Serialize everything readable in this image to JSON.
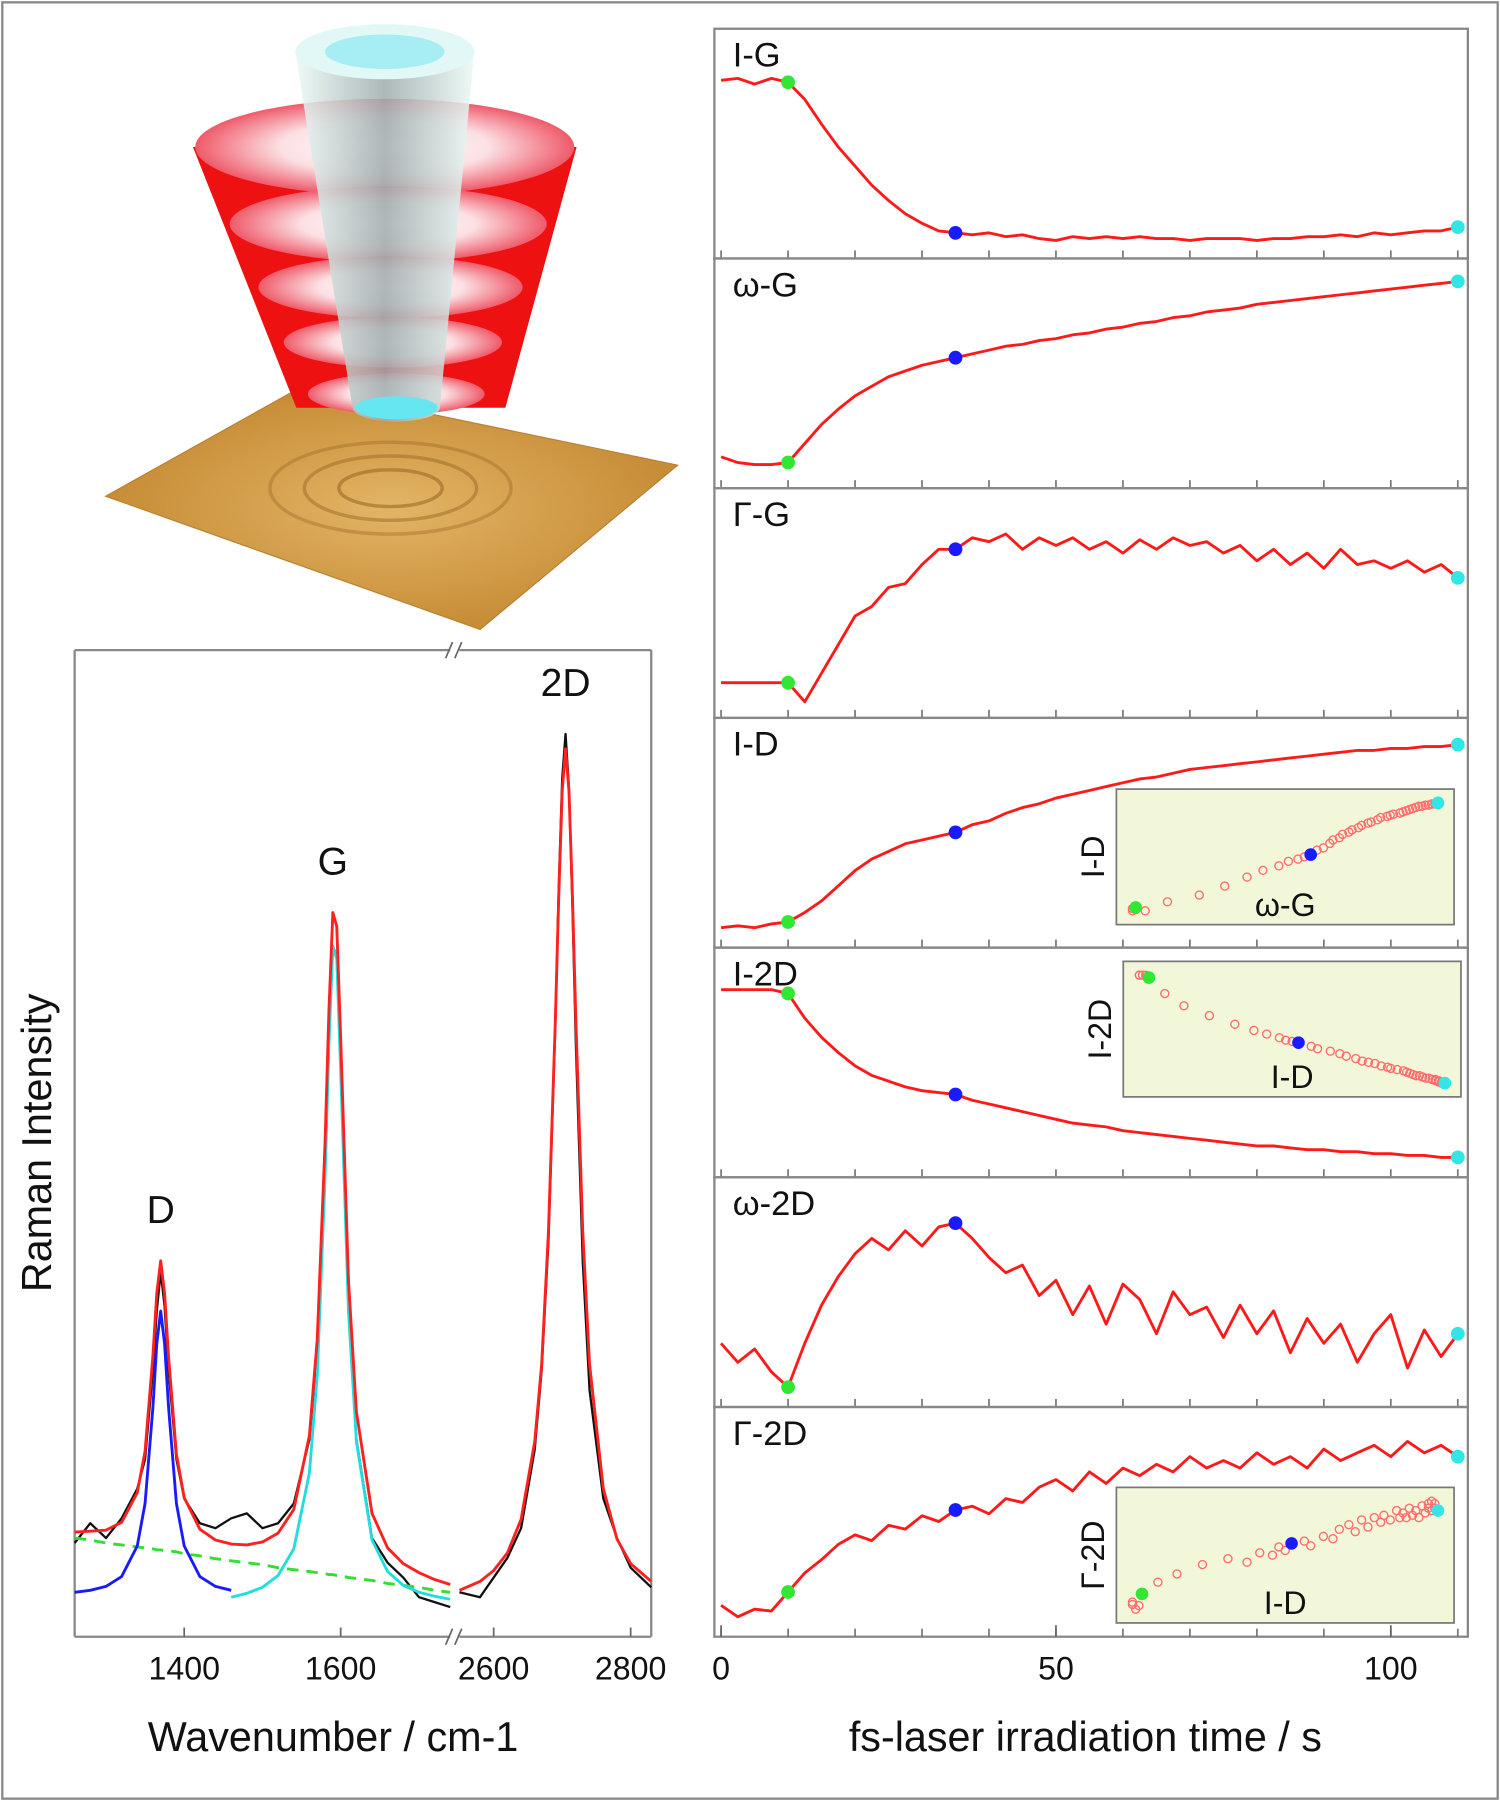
{
  "chart_data": [
    {
      "type": "line",
      "y_label": "Raman Intensity",
      "x_label": "Wavenumber / cm-1",
      "ylim": [
        0,
        1
      ],
      "segments": [
        {
          "xlim": [
            1260,
            1740
          ],
          "xticks": [
            1400,
            1600
          ],
          "x": [
            1260,
            1280,
            1300,
            1320,
            1340,
            1350,
            1360,
            1365,
            1370,
            1375,
            1380,
            1390,
            1400,
            1420,
            1440,
            1460,
            1480,
            1500,
            1520,
            1540,
            1560,
            1570,
            1580,
            1585,
            1590,
            1595,
            1600,
            1610,
            1620,
            1640,
            1660,
            1680,
            1700,
            1720,
            1740
          ],
          "series": [
            {
              "color": "#111111",
              "values": [
                0.095,
                0.115,
                0.1,
                0.12,
                0.15,
                0.18,
                0.27,
                0.33,
                0.37,
                0.335,
                0.27,
                0.18,
                0.14,
                0.115,
                0.11,
                0.12,
                0.125,
                0.11,
                0.115,
                0.135,
                0.2,
                0.29,
                0.48,
                0.61,
                0.7,
                0.69,
                0.58,
                0.33,
                0.2,
                0.1,
                0.075,
                0.06,
                0.04,
                0.035,
                0.03
              ]
            },
            {
              "color": "#33dd33",
              "style": "dashed",
              "values": [
                0.1,
                0.098,
                0.095,
                0.093,
                0.091,
                0.09,
                0.089,
                0.088,
                0.088,
                0.087,
                0.087,
                0.086,
                0.084,
                0.082,
                0.079,
                0.077,
                0.075,
                0.073,
                0.07,
                0.068,
                0.066,
                0.065,
                0.064,
                0.063,
                0.063,
                0.062,
                0.062,
                0.06,
                0.059,
                0.057,
                0.054,
                0.052,
                0.05,
                0.047,
                0.045
              ]
            },
            {
              "color": "#1a1aff",
              "values": [
                0.045,
                0.047,
                0.051,
                0.061,
                0.092,
                0.135,
                0.232,
                0.297,
                0.33,
                0.297,
                0.232,
                0.135,
                0.092,
                0.061,
                0.051,
                0.047,
                null,
                null,
                null,
                null,
                null,
                null,
                null,
                null,
                null,
                null,
                null,
                null,
                null,
                null,
                null,
                null,
                null,
                null,
                null
              ]
            },
            {
              "color": "#22dddd",
              "values": [
                null,
                null,
                null,
                null,
                null,
                null,
                null,
                null,
                null,
                null,
                null,
                null,
                null,
                null,
                null,
                0.04,
                0.044,
                0.05,
                0.062,
                0.089,
                0.166,
                0.265,
                0.465,
                0.601,
                0.7,
                0.687,
                0.574,
                0.33,
                0.198,
                0.098,
                0.066,
                0.052,
                0.045,
                0.041,
                0.038
              ]
            },
            {
              "color": "#ff2020",
              "values": [
                0.106,
                0.107,
                0.108,
                0.116,
                0.146,
                0.188,
                0.284,
                0.348,
                0.381,
                0.348,
                0.283,
                0.185,
                0.141,
                0.109,
                0.098,
                0.094,
                0.093,
                0.096,
                0.105,
                0.129,
                0.204,
                0.301,
                0.5,
                0.635,
                0.734,
                0.72,
                0.607,
                0.361,
                0.228,
                0.125,
                0.09,
                0.074,
                0.065,
                0.058,
                0.053
              ]
            }
          ]
        },
        {
          "xlim": [
            2550,
            2830
          ],
          "xticks": [
            2600,
            2800
          ],
          "x": [
            2550,
            2580,
            2600,
            2620,
            2640,
            2660,
            2670,
            2680,
            2690,
            2695,
            2700,
            2705,
            2710,
            2715,
            2720,
            2730,
            2740,
            2760,
            2780,
            2800,
            2830
          ],
          "series": [
            {
              "color": "#111111",
              "values": [
                0.045,
                0.04,
                0.06,
                0.08,
                0.11,
                0.19,
                0.27,
                0.4,
                0.62,
                0.76,
                0.87,
                0.915,
                0.86,
                0.74,
                0.6,
                0.38,
                0.25,
                0.14,
                0.1,
                0.07,
                0.05
              ]
            },
            {
              "color": "#ff2020",
              "values": [
                0.047,
                0.056,
                0.067,
                0.085,
                0.119,
                0.198,
                0.276,
                0.41,
                0.624,
                0.751,
                0.857,
                0.9,
                0.857,
                0.751,
                0.624,
                0.41,
                0.276,
                0.15,
                0.099,
                0.074,
                0.056
              ]
            }
          ]
        }
      ],
      "annotations": [
        {
          "text": "D",
          "x": 1370
        },
        {
          "text": "G",
          "x": 1590
        },
        {
          "text": "2D",
          "x": 2705
        }
      ]
    },
    {
      "type": "line",
      "x_label": "fs-laser irradiation time / s",
      "xlim": [
        -1,
        111.5
      ],
      "xticks": [
        0,
        50,
        100
      ],
      "xminorticks": [
        0,
        10,
        20,
        30,
        40,
        50,
        60,
        70,
        80,
        90,
        100,
        110
      ],
      "color": "#ff1a1a",
      "x": [
        0,
        2.5,
        5,
        7.5,
        10,
        12.5,
        15,
        17.5,
        20,
        22.5,
        25,
        27.5,
        30,
        32.5,
        35,
        37.5,
        40,
        42.5,
        45,
        47.5,
        50,
        52.5,
        55,
        57.5,
        60,
        62.5,
        65,
        67.5,
        70,
        72.5,
        75,
        77.5,
        80,
        82.5,
        85,
        87.5,
        90,
        92.5,
        95,
        97.5,
        100,
        102.5,
        105,
        107.5,
        110
      ],
      "markers": [
        {
          "x": 10,
          "color": "#33e633"
        },
        {
          "x": 35,
          "color": "#1a1aff"
        },
        {
          "x": 110,
          "color": "#33e6e6"
        }
      ],
      "panels": [
        {
          "label": "I-G",
          "ylim": [
            0,
            1
          ],
          "values": [
            0.85,
            0.86,
            0.83,
            0.86,
            0.84,
            0.75,
            0.62,
            0.5,
            0.4,
            0.3,
            0.22,
            0.15,
            0.1,
            0.06,
            0.05,
            0.04,
            0.05,
            0.03,
            0.04,
            0.02,
            0.01,
            0.03,
            0.02,
            0.03,
            0.02,
            0.03,
            0.02,
            0.02,
            0.01,
            0.02,
            0.02,
            0.02,
            0.01,
            0.02,
            0.02,
            0.03,
            0.03,
            0.04,
            0.03,
            0.05,
            0.04,
            0.05,
            0.06,
            0.06,
            0.08
          ]
        },
        {
          "label": "ω-G",
          "ylim": [
            0,
            1
          ],
          "values": [
            0.08,
            0.05,
            0.04,
            0.04,
            0.05,
            0.15,
            0.25,
            0.33,
            0.4,
            0.45,
            0.5,
            0.53,
            0.56,
            0.58,
            0.6,
            0.62,
            0.64,
            0.66,
            0.67,
            0.69,
            0.7,
            0.72,
            0.73,
            0.75,
            0.76,
            0.78,
            0.79,
            0.81,
            0.82,
            0.84,
            0.85,
            0.86,
            0.88,
            0.89,
            0.9,
            0.91,
            0.92,
            0.93,
            0.94,
            0.95,
            0.96,
            0.97,
            0.98,
            0.99,
            1.0
          ]
        },
        {
          "label": "Γ-G",
          "ylim": [
            0,
            1
          ],
          "values": [
            0.1,
            0.1,
            0.1,
            0.1,
            0.1,
            0.0,
            0.15,
            0.3,
            0.45,
            0.5,
            0.6,
            0.62,
            0.72,
            0.8,
            0.8,
            0.86,
            0.84,
            0.88,
            0.8,
            0.86,
            0.82,
            0.86,
            0.8,
            0.84,
            0.78,
            0.85,
            0.8,
            0.86,
            0.82,
            0.84,
            0.78,
            0.82,
            0.74,
            0.8,
            0.72,
            0.78,
            0.7,
            0.8,
            0.72,
            0.74,
            0.7,
            0.74,
            0.68,
            0.72,
            0.65
          ]
        },
        {
          "label": "I-D",
          "ylim": [
            0,
            1
          ],
          "values": [
            0.02,
            0.03,
            0.02,
            0.04,
            0.05,
            0.1,
            0.16,
            0.24,
            0.32,
            0.38,
            0.42,
            0.46,
            0.48,
            0.5,
            0.52,
            0.56,
            0.58,
            0.62,
            0.65,
            0.67,
            0.7,
            0.72,
            0.74,
            0.76,
            0.78,
            0.8,
            0.81,
            0.83,
            0.85,
            0.86,
            0.87,
            0.88,
            0.89,
            0.9,
            0.91,
            0.92,
            0.93,
            0.94,
            0.95,
            0.95,
            0.96,
            0.96,
            0.97,
            0.97,
            0.98
          ],
          "inset": {
            "x_label": "ω-G",
            "y_label": "I-D",
            "color": "#ff6e6e",
            "background": "#f3f7da"
          }
        },
        {
          "label": "I-2D",
          "ylim": [
            0,
            1
          ],
          "values": [
            0.9,
            0.9,
            0.9,
            0.9,
            0.88,
            0.75,
            0.65,
            0.57,
            0.5,
            0.45,
            0.42,
            0.39,
            0.37,
            0.36,
            0.35,
            0.32,
            0.3,
            0.28,
            0.26,
            0.24,
            0.22,
            0.2,
            0.19,
            0.18,
            0.16,
            0.15,
            0.14,
            0.13,
            0.12,
            0.11,
            0.1,
            0.09,
            0.08,
            0.08,
            0.07,
            0.06,
            0.06,
            0.05,
            0.05,
            0.04,
            0.04,
            0.03,
            0.03,
            0.02,
            0.02
          ],
          "inset": {
            "x_label": "I-D",
            "y_label": "I-2D",
            "color": "#ff6e6e",
            "background": "#f3f7da"
          }
        },
        {
          "label": "ω-2D",
          "ylim": [
            0,
            1
          ],
          "values": [
            0.25,
            0.15,
            0.22,
            0.1,
            0.02,
            0.25,
            0.45,
            0.6,
            0.72,
            0.8,
            0.74,
            0.84,
            0.76,
            0.86,
            0.88,
            0.8,
            0.7,
            0.62,
            0.66,
            0.5,
            0.58,
            0.4,
            0.55,
            0.35,
            0.56,
            0.48,
            0.3,
            0.52,
            0.4,
            0.44,
            0.28,
            0.45,
            0.3,
            0.42,
            0.2,
            0.38,
            0.25,
            0.35,
            0.15,
            0.3,
            0.4,
            0.12,
            0.32,
            0.18,
            0.3
          ]
        },
        {
          "label": "Γ-2D",
          "ylim": [
            0,
            1
          ],
          "values": [
            0.08,
            0.02,
            0.06,
            0.05,
            0.15,
            0.25,
            0.32,
            0.4,
            0.45,
            0.42,
            0.5,
            0.48,
            0.55,
            0.52,
            0.58,
            0.6,
            0.56,
            0.64,
            0.62,
            0.7,
            0.74,
            0.68,
            0.78,
            0.72,
            0.8,
            0.76,
            0.82,
            0.78,
            0.86,
            0.8,
            0.84,
            0.8,
            0.88,
            0.82,
            0.86,
            0.8,
            0.9,
            0.84,
            0.88,
            0.92,
            0.86,
            0.94,
            0.88,
            0.92,
            0.86
          ],
          "inset": {
            "x_label": "I-D",
            "y_label": "Γ-2D",
            "color": "#ff6e6e",
            "background": "#f3f7da"
          }
        }
      ]
    }
  ]
}
